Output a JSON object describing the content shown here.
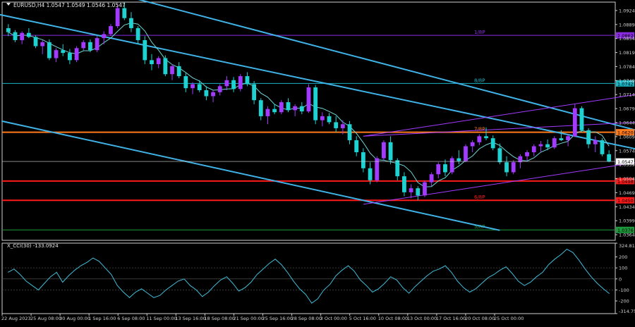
{
  "main": {
    "symbol_label": "EURUSD,H4  1.0547 1.0549 1.0546 1.0547",
    "current_price": "1.0547"
  },
  "colors": {
    "bull": "#a23bff",
    "bear": "#1fd2d2",
    "ma": "#6fd6d6",
    "channel": "#3fb3e8",
    "fib_channel": "#a23bff",
    "murrey_purple": "#8a2be2",
    "murrey_teal": "#17b5c7",
    "murrey_red": "#ff1a1a",
    "murrey_orange": "#ff7a1a",
    "murrey_green": "#1c9a3c",
    "cci": "#41bcd8",
    "cci_zero": "#4a4a4a",
    "current_price": "#d8d8d8"
  },
  "murrey_lines": [
    {
      "price": 1.0862,
      "label": "1/8P",
      "color": "murrey_purple",
      "tag": "1.0862"
    },
    {
      "price": 1.0742,
      "label": "8/8P",
      "color": "murrey_teal",
      "tag": "1.0742"
    },
    {
      "price": 1.062,
      "label": "7/8P",
      "color": "murrey_orange",
      "tag": "1.0620"
    },
    {
      "price": 1.0498,
      "label": "",
      "color": "murrey_red",
      "tag": "1.0498"
    },
    {
      "price": 1.045,
      "label": "6/8P",
      "color": "murrey_red",
      "tag": "1.0450"
    },
    {
      "price": 1.0376,
      "label": "5/8P",
      "color": "murrey_green",
      "tag": "1.0376"
    }
  ],
  "chart_data": [
    {
      "type": "candlestick",
      "title": "EURUSD,H4  1.0547 1.0549 1.0546 1.0547",
      "ylim": [
        1.035,
        1.0945
      ],
      "y_ticks": [
        "1.0924",
        "1.0889",
        "1.0854",
        "1.0819",
        "1.0784",
        "1.0749",
        "1.0714",
        "1.0679",
        "1.0644",
        "1.0609",
        "1.0574",
        "1.0539",
        "1.0504",
        "1.0469",
        "1.0434",
        "1.0399",
        "1.0364"
      ],
      "x_ticks": [
        "22 Aug 2023",
        "25 Aug 08:00",
        "30 Aug 00:00",
        "1 Sep 16:00",
        "6 Sep 08:00",
        "11 Sep 00:00",
        "13 Sep 16:00",
        "18 Sep 08:00",
        "21 Sep 00:00",
        "25 Sep 16:00",
        "28 Sep 08:00",
        "3 Oct 00:00",
        "5 Oct 16:00",
        "10 Oct 08:00",
        "13 Oct 00:00",
        "17 Oct 16:00",
        "20 Oct 08:00",
        "25 Oct 00:00"
      ],
      "ohlc": [
        [
          1.088,
          1.089,
          1.086,
          1.087
        ],
        [
          1.087,
          1.0875,
          1.0845,
          1.085
        ],
        [
          1.085,
          1.0872,
          1.084,
          1.0868
        ],
        [
          1.0868,
          1.088,
          1.0855,
          1.0858
        ],
        [
          1.0858,
          1.0862,
          1.083,
          1.0835
        ],
        [
          1.0835,
          1.085,
          1.0815,
          1.0845
        ],
        [
          1.0845,
          1.0852,
          1.08,
          1.0805
        ],
        [
          1.0805,
          1.083,
          1.0795,
          1.0825
        ],
        [
          1.0825,
          1.084,
          1.081,
          1.0818
        ],
        [
          1.0818,
          1.0828,
          1.079,
          1.08
        ],
        [
          1.08,
          1.0835,
          1.0795,
          1.083
        ],
        [
          1.083,
          1.085,
          1.0825,
          1.0845
        ],
        [
          1.0845,
          1.0852,
          1.082,
          1.0825
        ],
        [
          1.0825,
          1.086,
          1.082,
          1.0855
        ],
        [
          1.0855,
          1.0872,
          1.084,
          1.0865
        ],
        [
          1.0865,
          1.089,
          1.086,
          1.0885
        ],
        [
          1.0885,
          1.094,
          1.088,
          1.093
        ],
        [
          1.093,
          1.0945,
          1.09,
          1.0905
        ],
        [
          1.0905,
          1.092,
          1.087,
          1.088
        ],
        [
          1.088,
          1.0885,
          1.084,
          1.085
        ],
        [
          1.085,
          1.086,
          1.079,
          1.08
        ],
        [
          1.08,
          1.0815,
          1.0775,
          1.079
        ],
        [
          1.079,
          1.081,
          1.078,
          1.0805
        ],
        [
          1.0805,
          1.0812,
          1.076,
          1.0765
        ],
        [
          1.0765,
          1.079,
          1.075,
          1.0785
        ],
        [
          1.0785,
          1.0795,
          1.0755,
          1.076
        ],
        [
          1.076,
          1.0768,
          1.072,
          1.073
        ],
        [
          1.073,
          1.0745,
          1.0715,
          1.074
        ],
        [
          1.074,
          1.075,
          1.072,
          1.0725
        ],
        [
          1.0725,
          1.0735,
          1.07,
          1.071
        ],
        [
          1.071,
          1.0725,
          1.0695,
          1.072
        ],
        [
          1.072,
          1.074,
          1.0712,
          1.0735
        ],
        [
          1.0735,
          1.076,
          1.0725,
          1.075
        ],
        [
          1.075,
          1.0758,
          1.072,
          1.0728
        ],
        [
          1.0728,
          1.0765,
          1.0722,
          1.076
        ],
        [
          1.076,
          1.077,
          1.0735,
          1.074
        ],
        [
          1.074,
          1.0748,
          1.069,
          1.07
        ],
        [
          1.07,
          1.0705,
          1.065,
          1.066
        ],
        [
          1.066,
          1.0685,
          1.064,
          1.0678
        ],
        [
          1.0678,
          1.069,
          1.0665,
          1.067
        ],
        [
          1.067,
          1.07,
          1.0665,
          1.0695
        ],
        [
          1.0695,
          1.0705,
          1.067,
          1.0675
        ],
        [
          1.0675,
          1.069,
          1.066,
          1.0685
        ],
        [
          1.0685,
          1.0695,
          1.0665,
          1.0672
        ],
        [
          1.0672,
          1.074,
          1.0668,
          1.0732
        ],
        [
          1.0732,
          1.0738,
          1.064,
          1.065
        ],
        [
          1.065,
          1.067,
          1.0635,
          1.066
        ],
        [
          1.066,
          1.0668,
          1.064,
          1.0645
        ],
        [
          1.0645,
          1.066,
          1.062,
          1.063
        ],
        [
          1.063,
          1.065,
          1.0615,
          1.064
        ],
        [
          1.064,
          1.0648,
          1.059,
          1.06
        ],
        [
          1.06,
          1.061,
          1.056,
          1.057
        ],
        [
          1.057,
          1.058,
          1.052,
          1.053
        ],
        [
          1.053,
          1.0545,
          1.049,
          1.05
        ],
        [
          1.05,
          1.056,
          1.0495,
          1.0555
        ],
        [
          1.0555,
          1.06,
          1.055,
          1.0595
        ],
        [
          1.0595,
          1.061,
          1.054,
          1.055
        ],
        [
          1.055,
          1.0555,
          1.05,
          1.051
        ],
        [
          1.051,
          1.052,
          1.046,
          1.047
        ],
        [
          1.047,
          1.049,
          1.0455,
          1.048
        ],
        [
          1.048,
          1.0485,
          1.045,
          1.0462
        ],
        [
          1.0462,
          1.05,
          1.0458,
          1.0495
        ],
        [
          1.0495,
          1.052,
          1.0485,
          1.0515
        ],
        [
          1.0515,
          1.0545,
          1.0505,
          1.054
        ],
        [
          1.054,
          1.0552,
          1.051,
          1.052
        ],
        [
          1.052,
          1.056,
          1.0515,
          1.0555
        ],
        [
          1.0555,
          1.0575,
          1.054,
          1.0548
        ],
        [
          1.0548,
          1.059,
          1.0545,
          1.0585
        ],
        [
          1.0585,
          1.06,
          1.057,
          1.0595
        ],
        [
          1.0595,
          1.0615,
          1.0588,
          1.061
        ],
        [
          1.061,
          1.0632,
          1.06,
          1.0605
        ],
        [
          1.0605,
          1.0612,
          1.0575,
          1.058
        ],
        [
          1.058,
          1.0592,
          1.054,
          1.0545
        ],
        [
          1.0545,
          1.056,
          1.051,
          1.052
        ],
        [
          1.052,
          1.055,
          1.0515,
          1.0545
        ],
        [
          1.0545,
          1.0565,
          1.053,
          1.056
        ],
        [
          1.056,
          1.0575,
          1.0548,
          1.057
        ],
        [
          1.057,
          1.059,
          1.056,
          1.0585
        ],
        [
          1.0585,
          1.0598,
          1.057,
          1.059
        ],
        [
          1.059,
          1.0602,
          1.0575,
          1.0582
        ],
        [
          1.0582,
          1.061,
          1.0578,
          1.0605
        ],
        [
          1.0605,
          1.0625,
          1.0598,
          1.06
        ],
        [
          1.06,
          1.0615,
          1.0585,
          1.061
        ],
        [
          1.061,
          1.069,
          1.0608,
          1.068
        ],
        [
          1.068,
          1.0685,
          1.062,
          1.0625
        ],
        [
          1.0625,
          1.063,
          1.058,
          1.059
        ],
        [
          1.059,
          1.061,
          1.057,
          1.06
        ],
        [
          1.06,
          1.0605,
          1.056,
          1.0565
        ],
        [
          1.0565,
          1.0575,
          1.0545,
          1.0547
        ]
      ],
      "channels": [
        {
          "name": "",
          "from": [
            -3,
            1.092
          ],
          "to": [
            92,
            1.0578
          ]
        },
        {
          "name": "",
          "from": [
            -1,
            1.0648
          ],
          "to": [
            72,
            1.0375
          ]
        },
        {
          "name": "",
          "from": [
            19,
            1.0952
          ],
          "to": [
            98,
            1.0598
          ]
        }
      ],
      "fib_lines": [
        {
          "from": [
            52,
            1.044
          ],
          "to": [
            98,
            1.056
          ]
        },
        {
          "from": [
            52,
            1.061
          ],
          "to": [
            98,
            1.065
          ]
        },
        {
          "from": [
            52,
            1.061
          ],
          "to": [
            98,
            1.073
          ]
        }
      ]
    },
    {
      "type": "line",
      "title": "X_CCI(30) -133.0924",
      "ylim": [
        -315,
        325
      ],
      "y_ticks": [
        "324.8172",
        "200",
        "100",
        "0",
        "-100",
        "-200",
        "-314.758"
      ],
      "values": [
        60,
        90,
        40,
        -20,
        -60,
        -100,
        -40,
        20,
        60,
        -30,
        30,
        80,
        120,
        150,
        190,
        160,
        100,
        40,
        -60,
        -120,
        -170,
        -120,
        -90,
        -130,
        -170,
        -150,
        -100,
        -60,
        -20,
        0,
        -60,
        -100,
        -160,
        -120,
        -60,
        -10,
        20,
        -40,
        -110,
        -80,
        -30,
        40,
        90,
        140,
        180,
        130,
        60,
        -20,
        -90,
        -140,
        -220,
        -180,
        -100,
        -50,
        30,
        80,
        120,
        70,
        -10,
        -60,
        -120,
        -90,
        -40,
        20,
        -10,
        -80,
        -130,
        -70,
        -20,
        30,
        70,
        90,
        120,
        60,
        -20,
        -80,
        -120,
        -90,
        -40,
        10,
        40,
        80,
        110,
        50,
        -20,
        -60,
        -30,
        20,
        60,
        130,
        180,
        220,
        270,
        240,
        170,
        90,
        20,
        -40,
        -90,
        -133.0924
      ]
    }
  ]
}
